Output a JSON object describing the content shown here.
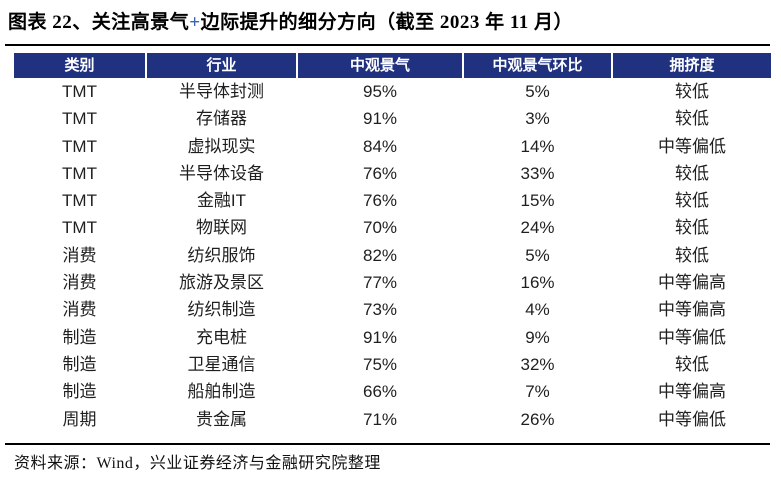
{
  "figure": {
    "title_prefix": "图表 22、关注高景气",
    "title_plus": "+",
    "title_suffix": "边际提升的细分方向（截至 2023 年 11 月）"
  },
  "chart_data": {
    "type": "table",
    "title": "图表 22、关注高景气+边际提升的细分方向（截至 2023 年 11 月）",
    "columns": [
      "类别",
      "行业",
      "中观景气",
      "中观景气环比",
      "拥挤度"
    ],
    "rows": [
      [
        "TMT",
        "半导体封测",
        "95%",
        "5%",
        "较低"
      ],
      [
        "TMT",
        "存储器",
        "91%",
        "3%",
        "较低"
      ],
      [
        "TMT",
        "虚拟现实",
        "84%",
        "14%",
        "中等偏低"
      ],
      [
        "TMT",
        "半导体设备",
        "76%",
        "33%",
        "较低"
      ],
      [
        "TMT",
        "金融IT",
        "76%",
        "15%",
        "较低"
      ],
      [
        "TMT",
        "物联网",
        "70%",
        "24%",
        "较低"
      ],
      [
        "消费",
        "纺织服饰",
        "82%",
        "5%",
        "较低"
      ],
      [
        "消费",
        "旅游及景区",
        "77%",
        "16%",
        "中等偏高"
      ],
      [
        "消费",
        "纺织制造",
        "73%",
        "4%",
        "中等偏高"
      ],
      [
        "制造",
        "充电桩",
        "91%",
        "9%",
        "中等偏低"
      ],
      [
        "制造",
        "卫星通信",
        "75%",
        "32%",
        "较低"
      ],
      [
        "制造",
        "船舶制造",
        "66%",
        "7%",
        "中等偏高"
      ],
      [
        "周期",
        "贵金属",
        "71%",
        "26%",
        "中等偏低"
      ]
    ],
    "layout": {
      "header_background": "#203180",
      "header_text_color": "#ffffff",
      "gridlines": false,
      "column_separators": "white 2px in header only"
    }
  },
  "colors": {
    "header_bg": "#203180",
    "rule": "#000000",
    "title_plus": "#3a62b6",
    "body_text": "#1f1f1f"
  },
  "footer": {
    "source": "资料来源：Wind，兴业证券经济与金融研究院整理"
  }
}
